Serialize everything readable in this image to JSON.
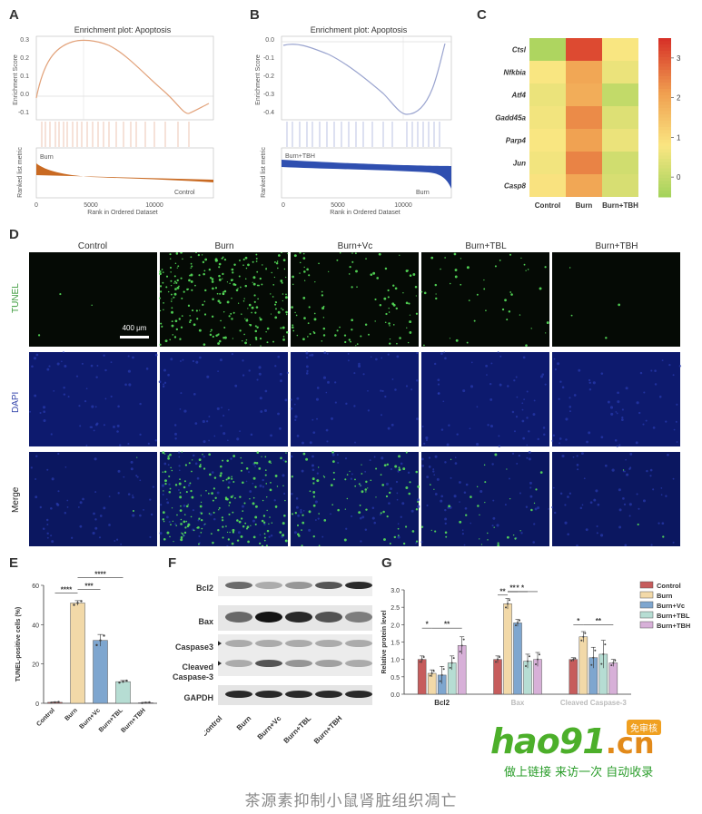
{
  "panels": {
    "A": {
      "letter": "A",
      "title": "Enrichment plot: Apoptosis",
      "ylabel": "Enrichment Score",
      "ylabel2": "Ranked list metric",
      "xlabel": "Rank in Ordered Dataset",
      "left_group": "Burn",
      "right_group": "Control",
      "yticks": [
        "0.3",
        "0.2",
        "0.1",
        "0.0",
        "-0.1"
      ],
      "xticks": [
        "0",
        "5000",
        "10000"
      ]
    },
    "B": {
      "letter": "B",
      "title": "Enrichment plot: Apoptosis",
      "ylabel": "Enrichment Score",
      "ylabel2": "Ranked list metric",
      "xlabel": "Rank in Ordered Dataset",
      "left_group": "Burn+TBH",
      "right_group": "Burn",
      "yticks": [
        "0.0",
        "-0.1",
        "-0.2",
        "-0.3",
        "-0.4"
      ],
      "xticks": [
        "0",
        "5000",
        "10000"
      ]
    },
    "C": {
      "letter": "C"
    },
    "D": {
      "letter": "D",
      "columns": [
        "Control",
        "Burn",
        "Burn+Vc",
        "Burn+TBL",
        "Burn+TBH"
      ],
      "rows": [
        "TUNEL",
        "DAPI",
        "Merge"
      ],
      "scalebar": "400 μm",
      "row_colors": {
        "TUNEL": "#3a9a3a",
        "DAPI": "#3344aa",
        "Merge": "#222222"
      }
    },
    "E": {
      "letter": "E"
    },
    "F": {
      "letter": "F",
      "bands": [
        "Bcl2",
        "Bax",
        "Caspase3",
        "Cleaved Caspase-3",
        "GAPDH"
      ],
      "lanes": [
        "Control",
        "Burn",
        "Burn+Vc",
        "Burn+TBL",
        "Burn+TBH"
      ]
    },
    "G": {
      "letter": "G"
    }
  },
  "chart_data": [
    {
      "panel": "C",
      "type": "heatmap",
      "rows": [
        "Ctsl",
        "Nfkbia",
        "Atf4",
        "Gadd45a",
        "Parp4",
        "Jun",
        "Casp8"
      ],
      "columns": [
        "Control",
        "Burn",
        "Burn+TBH"
      ],
      "values": [
        [
          -0.3,
          3.2,
          0.8
        ],
        [
          0.8,
          2.0,
          0.6
        ],
        [
          0.6,
          1.9,
          0.0
        ],
        [
          0.7,
          2.4,
          0.4
        ],
        [
          0.8,
          2.1,
          0.6
        ],
        [
          0.7,
          2.5,
          0.2
        ],
        [
          0.9,
          2.0,
          0.3
        ]
      ],
      "colorbar": {
        "ticks": [
          "3",
          "2",
          "1",
          "0"
        ],
        "range": [
          -0.5,
          3.5
        ]
      }
    },
    {
      "panel": "E",
      "type": "bar",
      "categories": [
        "Control",
        "Burn",
        "Burn+Vc",
        "Burn+TBL",
        "Burn+TBH"
      ],
      "values": [
        0.5,
        51,
        32,
        11,
        0.3
      ],
      "errors": [
        0.2,
        1.2,
        3,
        0.6,
        0.2
      ],
      "colors": [
        "#c65c5c",
        "#f2d9a8",
        "#7ea6cf",
        "#b6ddd3",
        "#d7b0d8"
      ],
      "ylabel": "TUNEL-positive cells (%)",
      "yticks": [
        "0",
        "20",
        "40",
        "60"
      ],
      "ylim": [
        0,
        60
      ],
      "significance": [
        {
          "from": 1,
          "to": 0,
          "label": "****"
        },
        {
          "from": 1,
          "to": 2,
          "label": "***"
        },
        {
          "from": 1,
          "to": 3,
          "label": "****"
        },
        {
          "from": 1,
          "to": 4,
          "label": "****"
        }
      ]
    },
    {
      "panel": "G",
      "type": "bar",
      "groups": [
        "Bcl2",
        "Bax",
        "Cleaved Caspase-3"
      ],
      "ylabel": "Relative protein level",
      "yticks": [
        "0.0",
        "0.5",
        "1.0",
        "1.5",
        "2.0",
        "2.5",
        "3.0"
      ],
      "ylim": [
        0,
        3
      ],
      "series": [
        {
          "name": "Control",
          "color": "#c65c5c",
          "values": [
            1.0,
            1.0,
            1.0
          ]
        },
        {
          "name": "Burn",
          "color": "#f2d9a8",
          "values": [
            0.6,
            2.6,
            1.65
          ]
        },
        {
          "name": "Burn+Vc",
          "color": "#7ea6cf",
          "values": [
            0.55,
            2.05,
            1.05
          ]
        },
        {
          "name": "Burn+TBL",
          "color": "#b6ddd3",
          "values": [
            0.9,
            0.95,
            1.15
          ]
        },
        {
          "name": "Burn+TBH",
          "color": "#d7b0d8",
          "values": [
            1.4,
            1.0,
            0.9
          ]
        }
      ],
      "errors": [
        [
          0.1,
          0.1,
          0.05
        ],
        [
          0.1,
          0.15,
          0.15
        ],
        [
          0.25,
          0.1,
          0.3
        ],
        [
          0.2,
          0.2,
          0.4
        ],
        [
          0.25,
          0.2,
          0.1
        ]
      ],
      "significance_labels": [
        "*",
        "**",
        "**",
        "**",
        "*",
        "*",
        "*",
        "**"
      ]
    }
  ],
  "watermark": {
    "brand_a": "hao91",
    "brand_b": ".cn",
    "badge": "免审核",
    "sub": "做上链接 来访一次 自动收录"
  },
  "caption": "茶源素抑制小鼠肾脏组织凋亡"
}
